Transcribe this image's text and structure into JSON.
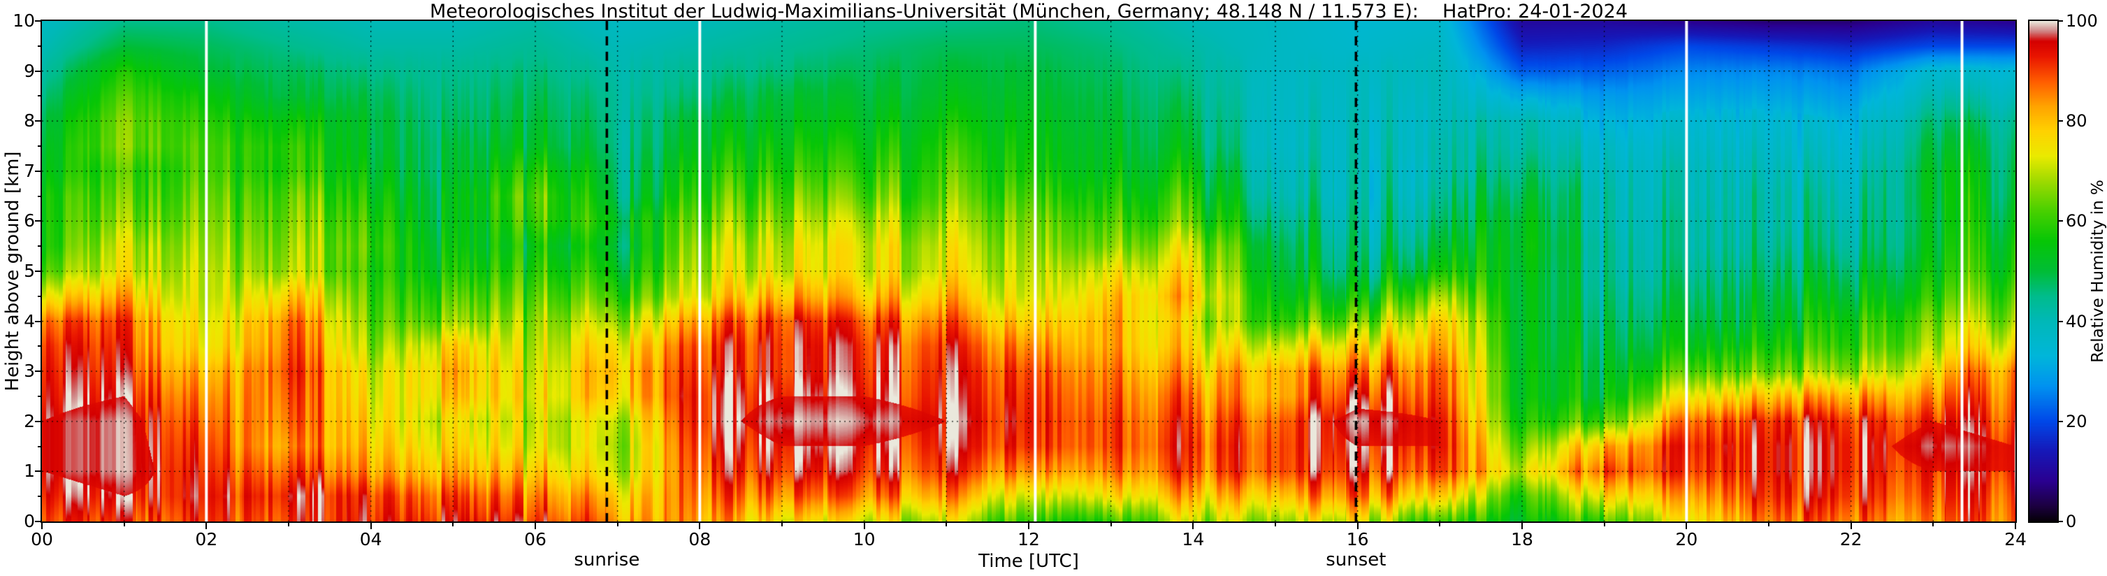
{
  "chart_data": {
    "type": "heatmap",
    "title": "Meteorologisches Institut der Ludwig-Maximilians-Universität (München, Germany; 48.148 N / 11.573 E):    HatPro: 24-01-2024",
    "xlabel": "Time [UTC]",
    "ylabel": "Height above ground [km]",
    "colorbar_label": "Relative Humidity in %",
    "xlim_hours": [
      0,
      24
    ],
    "ylim_km": [
      0,
      10
    ],
    "clim_percent": [
      0,
      100
    ],
    "x_tick_hours": [
      0,
      2,
      4,
      6,
      8,
      10,
      12,
      14,
      16,
      18,
      20,
      22,
      24
    ],
    "x_tick_labels": [
      "00",
      "02",
      "04",
      "06",
      "08",
      "10",
      "12",
      "14",
      "16",
      "18",
      "20",
      "22",
      "24"
    ],
    "y_tick_km": [
      0,
      1,
      2,
      3,
      4,
      5,
      6,
      7,
      8,
      9,
      10
    ],
    "y_tick_labels": [
      "0",
      "1",
      "2",
      "3",
      "4",
      "5",
      "6",
      "7",
      "8",
      "9",
      "10"
    ],
    "colorbar_tick_percent": [
      0,
      20,
      40,
      60,
      80,
      100
    ],
    "colorbar_tick_labels": [
      "0",
      "20",
      "40",
      "60",
      "80",
      "100"
    ],
    "grid": {
      "style": "dotted black",
      "x_every_hours": 1,
      "y_every_km": 1
    },
    "annotations": [
      {
        "label": "sunrise",
        "hour": 6.87,
        "style": "black dashed vertical line"
      },
      {
        "label": "sunset",
        "hour": 15.98,
        "style": "black dashed vertical line"
      }
    ],
    "data_gap_lines_hours": [
      2.0,
      8.0,
      12.08,
      20.0,
      23.35
    ],
    "colormap_stops_percent_hex": [
      [
        0,
        "#050008"
      ],
      [
        3,
        "#1c0040"
      ],
      [
        8,
        "#2a0090"
      ],
      [
        14,
        "#1618b8"
      ],
      [
        20,
        "#0048e8"
      ],
      [
        27,
        "#0092f0"
      ],
      [
        33,
        "#00b6da"
      ],
      [
        40,
        "#00b8b8"
      ],
      [
        45,
        "#00bc8c"
      ],
      [
        50,
        "#00bd36"
      ],
      [
        56,
        "#06c606"
      ],
      [
        62,
        "#48d000"
      ],
      [
        68,
        "#9eda00"
      ],
      [
        73,
        "#eaea00"
      ],
      [
        78,
        "#ffd200"
      ],
      [
        83,
        "#ffa300"
      ],
      [
        88,
        "#ff5c00"
      ],
      [
        93,
        "#e91500"
      ],
      [
        96,
        "#d40000"
      ],
      [
        98,
        "#cf8484"
      ],
      [
        100,
        "#eae8dc"
      ]
    ],
    "x_hours": [
      0,
      1,
      2,
      3,
      4,
      5,
      6,
      7,
      8,
      9,
      10,
      11,
      12,
      13,
      14,
      15,
      16,
      17,
      18,
      19,
      20,
      21,
      22,
      23,
      24
    ],
    "y_km": [
      0,
      0.5,
      1,
      1.5,
      2,
      2.5,
      3,
      3.5,
      4,
      4.5,
      5,
      5.5,
      6,
      6.5,
      7,
      7.5,
      8,
      8.5,
      9,
      9.5,
      10
    ],
    "rh_percent_by_hour": [
      [
        88,
        92,
        95,
        95,
        95,
        93,
        92,
        90,
        85,
        72,
        60,
        55,
        55,
        55,
        52,
        50,
        48,
        45,
        42,
        40,
        38
      ],
      [
        90,
        95,
        98,
        98,
        98,
        95,
        92,
        90,
        88,
        80,
        72,
        70,
        65,
        62,
        60,
        65,
        65,
        62,
        58,
        50,
        45
      ],
      [
        90,
        92,
        90,
        88,
        85,
        82,
        78,
        72,
        70,
        68,
        68,
        66,
        64,
        62,
        60,
        60,
        58,
        55,
        50,
        48,
        45
      ],
      [
        92,
        95,
        90,
        85,
        88,
        90,
        92,
        90,
        88,
        80,
        70,
        68,
        66,
        64,
        60,
        60,
        56,
        50,
        48,
        45,
        42
      ],
      [
        92,
        90,
        82,
        78,
        75,
        72,
        70,
        65,
        62,
        60,
        58,
        60,
        58,
        55,
        52,
        50,
        50,
        48,
        45,
        42,
        40
      ],
      [
        92,
        88,
        80,
        75,
        72,
        78,
        80,
        76,
        65,
        60,
        55,
        52,
        50,
        50,
        48,
        48,
        46,
        45,
        44,
        42,
        40
      ],
      [
        90,
        85,
        78,
        72,
        70,
        72,
        70,
        68,
        66,
        62,
        58,
        55,
        60,
        62,
        58,
        52,
        50,
        48,
        46,
        44,
        42
      ],
      [
        85,
        80,
        72,
        70,
        72,
        80,
        82,
        78,
        70,
        62,
        56,
        52,
        55,
        50,
        48,
        46,
        45,
        44,
        42,
        40,
        38
      ],
      [
        82,
        85,
        88,
        90,
        92,
        92,
        90,
        88,
        82,
        72,
        68,
        66,
        62,
        58,
        55,
        52,
        50,
        46,
        44,
        42,
        40
      ],
      [
        75,
        85,
        92,
        95,
        98,
        95,
        92,
        92,
        90,
        80,
        72,
        70,
        66,
        62,
        58,
        55,
        52,
        50,
        46,
        44,
        42
      ],
      [
        72,
        85,
        92,
        95,
        98,
        95,
        93,
        92,
        88,
        78,
        72,
        72,
        68,
        62,
        58,
        55,
        52,
        50,
        48,
        46,
        44
      ],
      [
        70,
        82,
        90,
        93,
        95,
        93,
        92,
        90,
        85,
        78,
        72,
        70,
        66,
        62,
        60,
        58,
        55,
        52,
        50,
        48,
        45
      ],
      [
        60,
        72,
        85,
        92,
        93,
        92,
        90,
        85,
        78,
        72,
        70,
        68,
        66,
        62,
        58,
        56,
        54,
        52,
        50,
        48,
        46
      ],
      [
        62,
        78,
        88,
        92,
        92,
        90,
        88,
        85,
        85,
        82,
        76,
        68,
        64,
        60,
        56,
        54,
        52,
        50,
        48,
        46,
        44
      ],
      [
        70,
        80,
        88,
        90,
        88,
        85,
        80,
        75,
        72,
        78,
        74,
        70,
        62,
        58,
        54,
        50,
        48,
        46,
        44,
        42,
        40
      ],
      [
        68,
        80,
        90,
        90,
        88,
        82,
        82,
        72,
        60,
        55,
        52,
        50,
        46,
        42,
        40,
        38,
        38,
        38,
        38,
        38,
        38
      ],
      [
        72,
        85,
        92,
        95,
        98,
        92,
        85,
        75,
        62,
        52,
        45,
        42,
        40,
        38,
        38,
        38,
        38,
        38,
        38,
        36,
        35
      ],
      [
        62,
        80,
        92,
        95,
        95,
        92,
        90,
        85,
        80,
        70,
        58,
        52,
        48,
        45,
        42,
        42,
        40,
        40,
        40,
        38,
        36
      ],
      [
        55,
        60,
        72,
        65,
        58,
        55,
        55,
        54,
        54,
        54,
        55,
        56,
        55,
        52,
        48,
        44,
        42,
        32,
        22,
        15,
        10
      ],
      [
        60,
        75,
        88,
        80,
        60,
        52,
        50,
        48,
        46,
        44,
        42,
        42,
        40,
        40,
        38,
        36,
        32,
        28,
        22,
        16,
        10
      ],
      [
        72,
        80,
        88,
        90,
        85,
        72,
        60,
        52,
        48,
        45,
        42,
        40,
        40,
        38,
        38,
        36,
        34,
        30,
        26,
        20,
        8
      ],
      [
        85,
        90,
        92,
        92,
        90,
        78,
        62,
        55,
        50,
        48,
        45,
        42,
        40,
        40,
        38,
        36,
        34,
        30,
        26,
        18,
        6
      ],
      [
        85,
        90,
        92,
        92,
        90,
        80,
        65,
        58,
        55,
        50,
        46,
        42,
        40,
        38,
        36,
        34,
        32,
        28,
        24,
        16,
        6
      ],
      [
        88,
        92,
        95,
        98,
        95,
        88,
        80,
        72,
        68,
        62,
        58,
        56,
        55,
        56,
        55,
        52,
        48,
        42,
        36,
        20,
        10
      ],
      [
        90,
        92,
        95,
        95,
        92,
        90,
        88,
        78,
        70,
        65,
        60,
        58,
        55,
        52,
        50,
        48,
        45,
        40,
        35,
        20,
        8
      ]
    ]
  }
}
